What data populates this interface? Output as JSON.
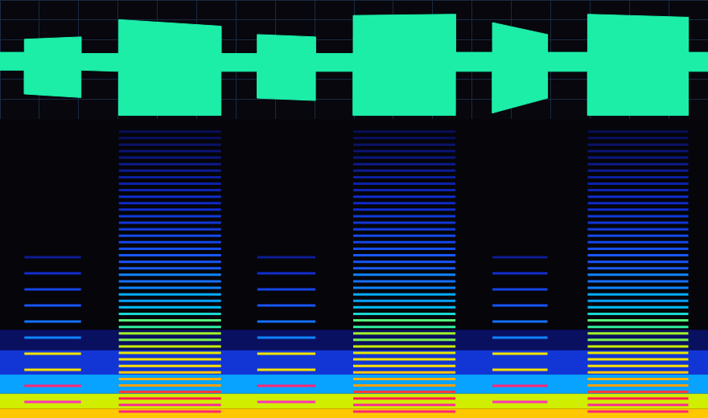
{
  "chart_data": [
    {
      "type": "area",
      "x": [
        0,
        0.31,
        0.31,
        1.03,
        1.03,
        1.51,
        1.51,
        2.81,
        2.81,
        3.27,
        3.27,
        4.01,
        4.01,
        4.49,
        4.49,
        5.79,
        5.79,
        6.26,
        6.26,
        6.96,
        6.96,
        7.47,
        7.47,
        8.75,
        8.75,
        9
      ],
      "values": [
        0.12,
        0.12,
        0.34,
        0.38,
        0.1,
        0.1,
        0.67,
        0.56,
        0.1,
        0.1,
        0.42,
        0.38,
        0.1,
        0.1,
        0.74,
        0.76,
        0.12,
        0.12,
        0.62,
        0.42,
        0.12,
        0.12,
        0.76,
        0.71,
        0.12,
        0.12
      ],
      "lower": [
        -0.18,
        -0.18,
        -0.58,
        -0.64,
        -0.18,
        -0.2,
        -0.94,
        -0.94,
        -0.2,
        -0.2,
        -0.65,
        -0.69,
        -0.2,
        -0.2,
        -0.94,
        -0.94,
        -0.2,
        -0.2,
        -0.9,
        -0.65,
        -0.2,
        -0.2,
        -0.94,
        -0.94,
        -0.2,
        -0.2
      ],
      "color": "#1ceea8",
      "xlim": [
        0,
        9
      ],
      "xticks": [
        0,
        0.5,
        1,
        1.5,
        2,
        2.5,
        3,
        3.5,
        4,
        4.5,
        5,
        5.5,
        6,
        6.5,
        7,
        7.5,
        8,
        8.5,
        9
      ],
      "ylim": [
        -1,
        1
      ],
      "yticks": [
        -1,
        -0.67,
        -0.33,
        0,
        0.33,
        0.67,
        1
      ],
      "grid": true,
      "tick_labels": false
    },
    {
      "type": "spectrogram",
      "xlim": [
        0,
        9
      ],
      "ylim": [
        0,
        22050
      ],
      "clim": [
        -100,
        0
      ],
      "grid": false,
      "tick_labels": false,
      "noise": [
        {
          "lo": 0,
          "hi": 700,
          "level": -25
        },
        {
          "lo": 700,
          "hi": 1800,
          "level": -35
        },
        {
          "lo": 1800,
          "hi": 3200,
          "level": -55
        },
        {
          "lo": 3200,
          "hi": 5000,
          "level": -72
        },
        {
          "lo": 5000,
          "hi": 6500,
          "level": -85
        }
      ],
      "tones": [
        {
          "start": 0.31,
          "end": 1.03,
          "freqs": [
            1185,
            2370,
            3555,
            4740,
            5925,
            7110,
            8295,
            9480,
            10665,
            11850
          ],
          "levels": [
            -4,
            -8,
            -28,
            -30,
            -58,
            -60,
            -64,
            -68,
            -74,
            -80
          ]
        },
        {
          "start": 1.51,
          "end": 2.81,
          "freqs": [
            480,
            960,
            1440,
            1920,
            2400,
            2880,
            3360,
            3840,
            4320,
            4800,
            5280,
            5760,
            6240,
            6720,
            7200,
            7680,
            8160,
            8640,
            9120,
            9600,
            10080,
            10560,
            11040,
            11520,
            12000,
            12480,
            12960,
            13440,
            13920,
            14400,
            14880,
            15360,
            15840,
            16320,
            16800,
            17280,
            17760,
            18240,
            18720,
            19200,
            19680,
            20160,
            20640,
            21120
          ],
          "levels": [
            -8,
            -6,
            -10,
            -12,
            -20,
            -22,
            -25,
            -28,
            -30,
            -32,
            -36,
            -40,
            -38,
            -44,
            -42,
            -48,
            -52,
            -55,
            -54,
            -58,
            -60,
            -58,
            -62,
            -64,
            -63,
            -66,
            -68,
            -67,
            -70,
            -72,
            -71,
            -74,
            -75,
            -74,
            -77,
            -78,
            -79,
            -80,
            -81,
            -82,
            -83,
            -84,
            -85,
            -86
          ]
        },
        {
          "start": 3.27,
          "end": 4.01,
          "freqs": [
            1185,
            2370,
            3555,
            4740,
            5925,
            7110,
            8295,
            9480,
            10665,
            11850
          ],
          "levels": [
            -4,
            -8,
            -28,
            -30,
            -58,
            -60,
            -64,
            -68,
            -74,
            -80
          ]
        },
        {
          "start": 4.49,
          "end": 5.79,
          "freqs": [
            480,
            960,
            1440,
            1920,
            2400,
            2880,
            3360,
            3840,
            4320,
            4800,
            5280,
            5760,
            6240,
            6720,
            7200,
            7680,
            8160,
            8640,
            9120,
            9600,
            10080,
            10560,
            11040,
            11520,
            12000,
            12480,
            12960,
            13440,
            13920,
            14400,
            14880,
            15360,
            15840,
            16320,
            16800,
            17280,
            17760,
            18240,
            18720,
            19200,
            19680,
            20160,
            20640,
            21120
          ],
          "levels": [
            -8,
            -6,
            -10,
            -12,
            -20,
            -22,
            -25,
            -28,
            -30,
            -32,
            -36,
            -40,
            -38,
            -44,
            -42,
            -48,
            -52,
            -55,
            -54,
            -58,
            -60,
            -58,
            -62,
            -64,
            -63,
            -66,
            -68,
            -67,
            -70,
            -72,
            -71,
            -74,
            -75,
            -74,
            -77,
            -78,
            -79,
            -80,
            -81,
            -82,
            -83,
            -84,
            -85,
            -86
          ]
        },
        {
          "start": 6.26,
          "end": 6.96,
          "freqs": [
            1185,
            2370,
            3555,
            4740,
            5925,
            7110,
            8295,
            9480,
            10665,
            11850
          ],
          "levels": [
            -4,
            -8,
            -28,
            -30,
            -58,
            -60,
            -64,
            -68,
            -74,
            -80
          ]
        },
        {
          "start": 7.47,
          "end": 8.75,
          "freqs": [
            480,
            960,
            1440,
            1920,
            2400,
            2880,
            3360,
            3840,
            4320,
            4800,
            5280,
            5760,
            6240,
            6720,
            7200,
            7680,
            8160,
            8640,
            9120,
            9600,
            10080,
            10560,
            11040,
            11520,
            12000,
            12480,
            12960,
            13440,
            13920,
            14400,
            14880,
            15360,
            15840,
            16320,
            16800,
            17280,
            17760,
            18240,
            18720,
            19200,
            19680,
            20160,
            20640,
            21120
          ],
          "levels": [
            -8,
            -6,
            -10,
            -12,
            -20,
            -22,
            -25,
            -28,
            -30,
            -32,
            -36,
            -40,
            -38,
            -44,
            -42,
            -48,
            -52,
            -55,
            -54,
            -58,
            -60,
            -58,
            -62,
            -64,
            -63,
            -66,
            -68,
            -67,
            -70,
            -72,
            -71,
            -74,
            -75,
            -74,
            -77,
            -78,
            -79,
            -80,
            -81,
            -82,
            -83,
            -84,
            -85,
            -86
          ]
        }
      ]
    }
  ]
}
